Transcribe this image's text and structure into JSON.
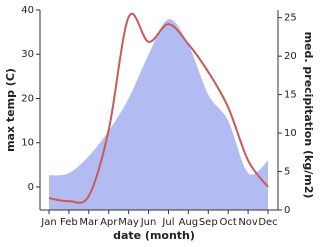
{
  "chart_data": {
    "type": "line-area",
    "xlabel": "date (month)",
    "ylabel": "max temp (C)",
    "y2label": "med. precipitation (kg/m2)",
    "categories": [
      "Jan",
      "Feb",
      "Mar",
      "Apr",
      "May",
      "Jun",
      "Jul",
      "Aug",
      "Sep",
      "Oct",
      "Nov",
      "Dec"
    ],
    "series": [
      {
        "name": "max temp",
        "kind": "line",
        "color": "#c95a5a",
        "axis": "y",
        "values": [
          -2.5,
          -3.2,
          -2,
          12.9,
          38.4,
          32.8,
          36.8,
          32.3,
          26,
          18,
          6,
          0
        ]
      },
      {
        "name": "med. precipitation",
        "kind": "area",
        "color": "#b3bcf2",
        "axis": "y2",
        "values": [
          4.5,
          4.8,
          7,
          10.3,
          14.5,
          20.2,
          24.8,
          21.5,
          15,
          11.6,
          4.8,
          6.4
        ]
      }
    ],
    "ylim": [
      -5.2,
      40
    ],
    "yticks": [
      0,
      10,
      20,
      30,
      40
    ],
    "y2lim": [
      0,
      26
    ],
    "y2ticks": [
      0,
      5,
      10,
      15,
      20,
      25
    ]
  }
}
